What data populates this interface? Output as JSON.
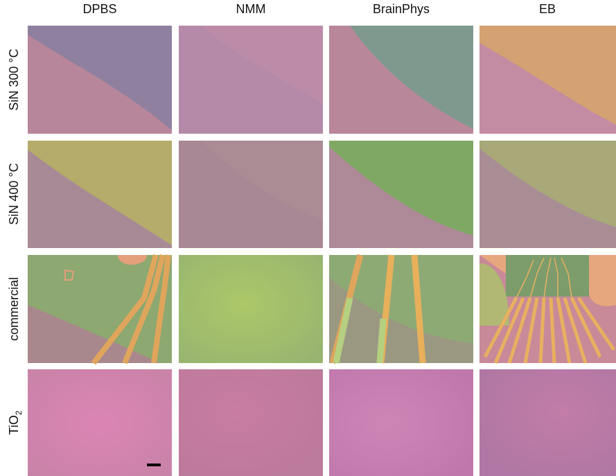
{
  "columns": [
    "DPBS",
    "NMM",
    "BrainPhys",
    "EB"
  ],
  "rows": [
    "SiN 300 °C",
    "SiN 400 °C",
    "commercial",
    {
      "text": "TiO",
      "subscript": "2"
    }
  ]
}
